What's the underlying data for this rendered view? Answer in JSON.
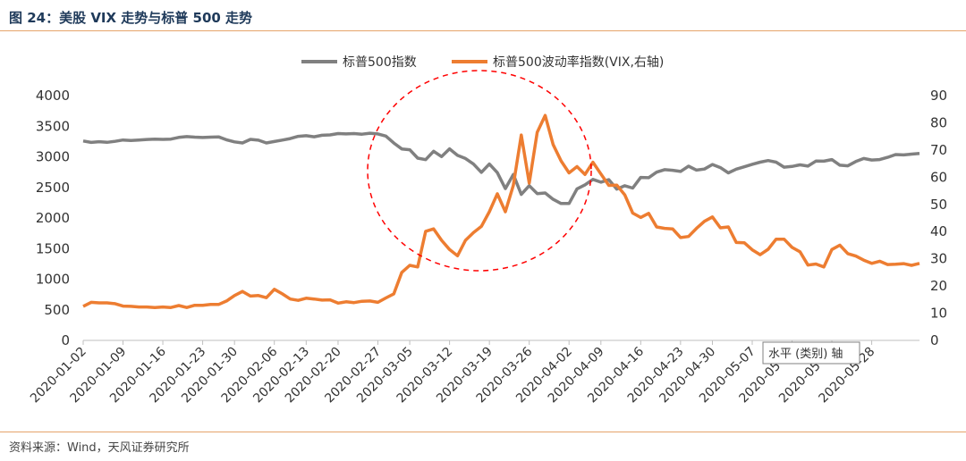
{
  "header": {
    "title": "图 24：美股 VIX 走势与标普 500 走势"
  },
  "footer": {
    "source": "资料来源：Wind，天风证券研究所"
  },
  "colors": {
    "sp500": "#808080",
    "vix": "#ED7D31",
    "circle": "#FF0000",
    "accent": "#E5A46A"
  },
  "chart_data": {
    "type": "line",
    "legend_position": "top",
    "y_left": {
      "min": 0,
      "max": 4000,
      "ticks": [
        0,
        500,
        1000,
        1500,
        2000,
        2500,
        3000,
        3500,
        4000
      ]
    },
    "y_right": {
      "min": 0,
      "max": 90,
      "ticks": [
        0,
        10,
        20,
        30,
        40,
        50,
        60,
        70,
        80,
        90
      ]
    },
    "x_tick_labels": [
      "2020-01-02",
      "2020-01-09",
      "2020-01-16",
      "2020-01-23",
      "2020-01-30",
      "2020-02-06",
      "2020-02-13",
      "2020-02-20",
      "2020-02-27",
      "2020-03-05",
      "2020-03-12",
      "2020-03-19",
      "2020-03-26",
      "2020-04-02",
      "2020-04-09",
      "2020-04-16",
      "2020-04-23",
      "2020-04-30",
      "2020-05-07",
      "2020-05-14",
      "2020-05-21",
      "2020-05-28"
    ],
    "axis_tooltip": "水平 (类别) 轴",
    "series": [
      {
        "name": "标普500指数",
        "axis": "left",
        "values": [
          3258,
          3235,
          3246,
          3237,
          3253,
          3275,
          3266,
          3274,
          3283,
          3289,
          3284,
          3289,
          3317,
          3330,
          3321,
          3316,
          3321,
          3325,
          3277,
          3244,
          3226,
          3284,
          3272,
          3226,
          3249,
          3273,
          3298,
          3334,
          3345,
          3327,
          3352,
          3357,
          3379,
          3374,
          3380,
          3370,
          3386,
          3373,
          3338,
          3225,
          3128,
          3116,
          2978,
          2954,
          3090,
          3003,
          3130,
          3024,
          2972,
          2882,
          2746,
          2882,
          2741,
          2480,
          2711,
          2386,
          2529,
          2398,
          2409,
          2305,
          2237,
          2237,
          2476,
          2541,
          2631,
          2585,
          2627,
          2471,
          2527,
          2489,
          2663,
          2659,
          2749,
          2790,
          2780,
          2761,
          2847,
          2783,
          2800,
          2875,
          2823,
          2737,
          2798,
          2837,
          2878,
          2912,
          2939,
          2912,
          2830,
          2842,
          2868,
          2848,
          2930,
          2929,
          2955,
          2863,
          2852,
          2923,
          2972,
          2948,
          2955,
          2991,
          3036,
          3030,
          3044,
          3056
        ],
        "tick_indices": [
          0,
          5,
          10,
          15,
          19,
          24,
          28,
          32,
          37,
          41,
          46,
          51,
          56,
          61,
          65,
          70,
          75,
          79,
          84,
          89,
          94,
          99
        ]
      },
      {
        "name": "标普500波动率指数(VIX,右轴)",
        "axis": "right",
        "values": [
          12.5,
          14.0,
          13.8,
          13.8,
          13.5,
          12.6,
          12.5,
          12.3,
          12.3,
          12.1,
          12.3,
          12.1,
          12.8,
          12.1,
          12.9,
          12.9,
          13.2,
          13.2,
          14.5,
          16.5,
          18.0,
          16.3,
          16.5,
          15.7,
          18.8,
          17.1,
          15.2,
          14.7,
          15.5,
          15.2,
          14.8,
          14.9,
          13.7,
          14.2,
          13.9,
          14.4,
          14.5,
          14.0,
          15.6,
          17.1,
          25.0,
          27.6,
          27.0,
          40.1,
          41.0,
          36.8,
          33.4,
          31.1,
          36.8,
          39.6,
          41.9,
          47.3,
          53.9,
          47.3,
          57.0,
          75.5,
          57.8,
          76.5,
          82.7,
          72.0,
          66.0,
          61.6,
          63.9,
          61.0,
          65.5,
          61.2,
          57.0,
          57.1,
          53.5,
          46.8,
          45.2,
          46.7,
          41.7,
          41.2,
          41.0,
          37.8,
          38.2,
          41.2,
          43.8,
          45.4,
          41.4,
          41.7,
          36.0,
          35.9,
          33.3,
          31.5,
          33.5,
          37.2,
          37.2,
          34.2,
          32.6,
          27.7,
          28.1,
          27.0,
          33.4,
          35.0,
          31.9,
          31.0,
          29.5,
          28.3,
          29.1,
          27.9,
          28.0,
          28.2,
          27.6,
          28.3
        ]
      }
    ],
    "annotation": "dashed red circle around the March 2020 peak"
  }
}
